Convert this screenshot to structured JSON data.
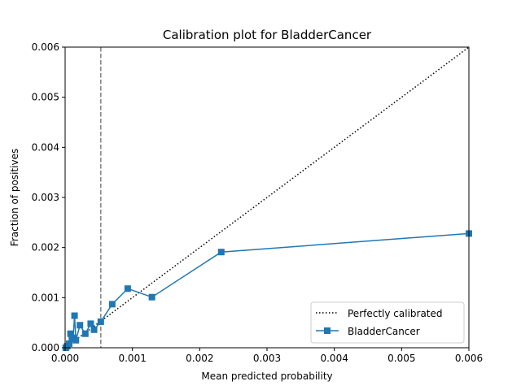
{
  "chart_data": {
    "type": "line",
    "title": "Calibration plot for BladderCancer",
    "xlabel": "Mean predicted probability",
    "ylabel": "Fraction of positives",
    "xlim": [
      0,
      0.006
    ],
    "ylim": [
      0,
      0.006
    ],
    "xticks": [
      "0.000",
      "0.001",
      "0.002",
      "0.003",
      "0.004",
      "0.005",
      "0.006"
    ],
    "yticks": [
      "0.000",
      "0.001",
      "0.002",
      "0.003",
      "0.004",
      "0.005",
      "0.006"
    ],
    "xtick_values": [
      0,
      0.001,
      0.002,
      0.003,
      0.004,
      0.005,
      0.006
    ],
    "ytick_values": [
      0,
      0.001,
      0.002,
      0.003,
      0.004,
      0.005,
      0.006
    ],
    "grid": false,
    "legend_position": "lower-right",
    "threshold_line": {
      "x": 0.00053,
      "style": "dashed",
      "color": "#808080"
    },
    "series": [
      {
        "name": "Perfectly calibrated",
        "style": "dotted",
        "color": "#000000",
        "marker": "none",
        "x": [
          0,
          0.006
        ],
        "y": [
          0,
          0.006
        ]
      },
      {
        "name": "BladderCancer",
        "style": "solid",
        "color": "#1f77b4",
        "marker": "square",
        "x": [
          1e-05,
          3e-05,
          6e-05,
          8e-05,
          0.0001,
          0.00012,
          0.00014,
          0.00016,
          0.00022,
          0.0003,
          0.00038,
          0.00043,
          0.00053,
          0.0007,
          0.00093,
          0.00129,
          0.00232,
          0.006
        ],
        "y": [
          0.0,
          3e-05,
          8e-05,
          0.00028,
          0.00018,
          0.0002,
          0.00064,
          0.00015,
          0.00045,
          0.00028,
          0.00048,
          0.00036,
          0.00052,
          0.00087,
          0.00118,
          0.00101,
          0.00191,
          0.00228
        ]
      }
    ]
  }
}
